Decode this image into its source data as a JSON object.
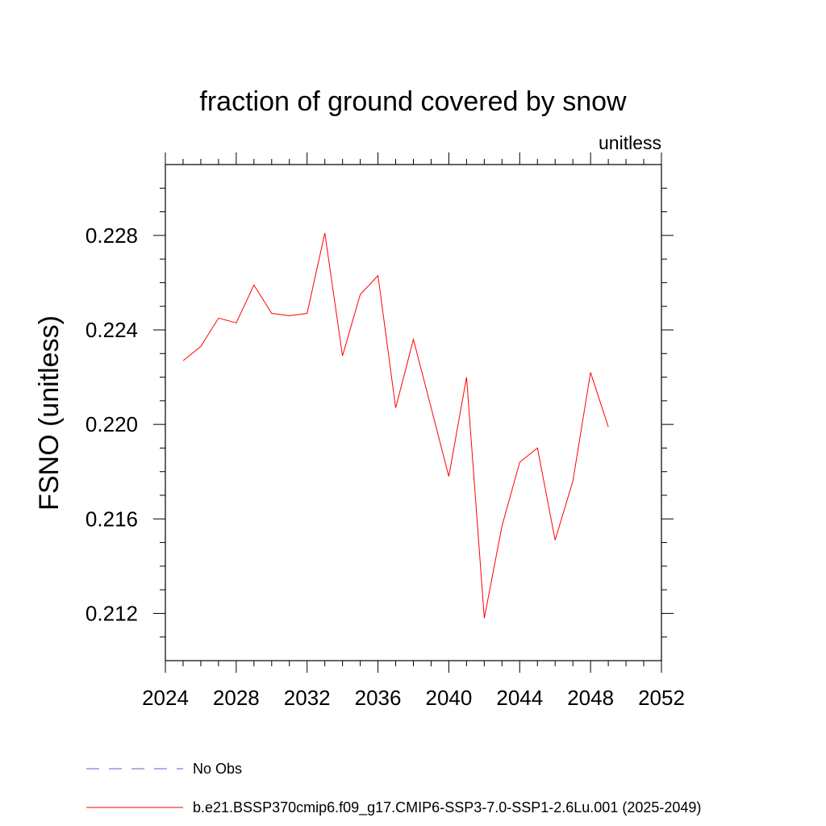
{
  "chart_data": {
    "type": "line",
    "title": "fraction of ground covered by snow",
    "subtitle": "unitless",
    "xlabel": "",
    "ylabel": "FSNO  (unitless)",
    "xlim": [
      2024,
      2052
    ],
    "ylim": [
      0.21,
      0.231
    ],
    "x_ticks": [
      2024,
      2028,
      2032,
      2036,
      2040,
      2044,
      2048,
      2052
    ],
    "y_ticks": [
      0.212,
      0.216,
      0.22,
      0.224,
      0.228
    ],
    "x_tick_labels": [
      "2024",
      "2028",
      "2032",
      "2036",
      "2040",
      "2044",
      "2048",
      "2052"
    ],
    "y_tick_labels": [
      "0.212",
      "0.216",
      "0.220",
      "0.224",
      "0.228"
    ],
    "grid": false,
    "legend_position": "bottom",
    "series": [
      {
        "name": "No Obs",
        "color": "#6a5acd",
        "dash": "dashed",
        "x": [],
        "y": []
      },
      {
        "name": "b.e21.BSSP370cmip6.f09_g17.CMIP6-SSP3-7.0-SSP1-2.6Lu.001 (2025-2049)",
        "color": "#ff0000",
        "dash": "solid",
        "x": [
          2025,
          2026,
          2027,
          2028,
          2029,
          2030,
          2031,
          2032,
          2033,
          2034,
          2035,
          2036,
          2037,
          2038,
          2039,
          2040,
          2041,
          2042,
          2043,
          2044,
          2045,
          2046,
          2047,
          2048,
          2049
        ],
        "y": [
          0.2227,
          0.2233,
          0.2245,
          0.2243,
          0.2259,
          0.2247,
          0.2246,
          0.2247,
          0.2281,
          0.2229,
          0.2255,
          0.2263,
          0.2207,
          0.2236,
          0.2207,
          0.2178,
          0.222,
          0.2118,
          0.2157,
          0.2184,
          0.219,
          0.2151,
          0.2176,
          0.2222,
          0.2199
        ]
      }
    ]
  }
}
